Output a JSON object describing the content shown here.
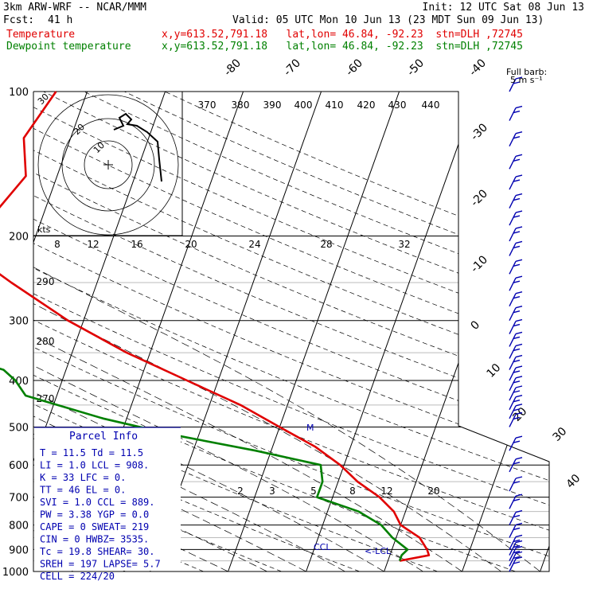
{
  "header": {
    "model": "3km ARW-WRF -- NCAR/MMM",
    "init": "Init: 12 UTC Sat 08 Jun 13",
    "fcst_label": "Fcst:",
    "fcst_hours": "41 h",
    "valid": "Valid: 05 UTC Mon 10 Jun 13 (23 MDT Sun 09 Jun 13)",
    "temp_label": "Temperature",
    "dew_label": "Dewpoint temperature",
    "location_line": "x,y=613.52,791.18   lat,lon= 46.84, -92.23  stn=DLH ,72745"
  },
  "colors": {
    "temperature": "#e00000",
    "dewpoint": "#008000",
    "info": "#0000b0",
    "barbs": "#0000b0",
    "axes": "#000000"
  },
  "chart_data": {
    "type": "line",
    "skewt": true,
    "ylabel": "",
    "pressure_levels": [
      100,
      200,
      300,
      400,
      500,
      600,
      700,
      800,
      900,
      1000
    ],
    "y_scale": "log",
    "isotherm_labels": [
      -80,
      -70,
      -60,
      -50,
      -40,
      -30,
      -20,
      -10,
      0,
      10,
      20,
      30,
      40
    ],
    "theta_labels": [
      370,
      380,
      390,
      400,
      410,
      420,
      430,
      440
    ],
    "theta_side_labels": [
      290,
      280,
      270
    ],
    "mixing_ratio_labels": [
      "2",
      "3",
      "5",
      "8",
      "12",
      "20"
    ],
    "hodograph_kts_labels": [
      "8",
      "12",
      "16",
      "20",
      "24",
      "28",
      "32"
    ],
    "hodograph_label": "kts",
    "hodograph_ring_labels": [
      "20",
      "10",
      "30"
    ],
    "barb_legend": "Full barb:\n5 m s⁻¹",
    "level_markers": [
      "CCL",
      "LCL",
      "M"
    ],
    "series": [
      {
        "name": "Temperature",
        "points": [
          [
            100,
            -54
          ],
          [
            125,
            -56
          ],
          [
            150,
            -54
          ],
          [
            175,
            -56
          ],
          [
            200,
            -57
          ],
          [
            215,
            -58
          ],
          [
            250,
            -51
          ],
          [
            300,
            -42
          ],
          [
            350,
            -33
          ],
          [
            400,
            -24
          ],
          [
            450,
            -16
          ],
          [
            500,
            -10
          ],
          [
            550,
            -4.5
          ],
          [
            600,
            -0.5
          ],
          [
            650,
            2.5
          ],
          [
            700,
            6.0
          ],
          [
            750,
            8.5
          ],
          [
            800,
            10.0
          ],
          [
            850,
            13.0
          ],
          [
            900,
            14.5
          ],
          [
            925,
            15.0
          ],
          [
            950,
            11.5
          ]
        ]
      },
      {
        "name": "Dewpoint temperature",
        "points": [
          [
            100,
            -76
          ],
          [
            125,
            -74
          ],
          [
            150,
            -72
          ],
          [
            175,
            -68
          ],
          [
            200,
            -64
          ],
          [
            225,
            -63
          ],
          [
            250,
            -61
          ],
          [
            275,
            -63
          ],
          [
            300,
            -66
          ],
          [
            320,
            -65
          ],
          [
            350,
            -56
          ],
          [
            380,
            -48
          ],
          [
            400,
            -46
          ],
          [
            430,
            -44
          ],
          [
            480,
            -33
          ],
          [
            520,
            -23
          ],
          [
            560,
            -12
          ],
          [
            600,
            -3
          ],
          [
            650,
            -2
          ],
          [
            700,
            -2
          ],
          [
            750,
            4
          ],
          [
            800,
            7.5
          ],
          [
            850,
            9.5
          ],
          [
            900,
            12
          ],
          [
            925,
            11.5
          ],
          [
            950,
            11.5
          ]
        ]
      }
    ]
  },
  "parcel_info": {
    "title": "Parcel Info",
    "rows": [
      "T  =   11.5  Td =  11.5",
      "LI =    1.0  LCL =  908.",
      "K  =     33  LFC =    0.",
      "TT =     46  EL  =    0.",
      "SVI =   1.0  CCL =  889.",
      "PW =   3.38  YGP =   0.0",
      "CAPE =    0  SWEAT=  219",
      "CIN =     0  HWBZ= 3535.",
      "Tc =   19.8  SHEAR=  30.",
      "SREH =  197  LAPSE=  5.7",
      "CELL = 224/20"
    ]
  },
  "wind_barbs": {
    "pressures": [
      100,
      115,
      130,
      145,
      160,
      175,
      190,
      205,
      220,
      240,
      260,
      280,
      300,
      320,
      340,
      360,
      380,
      400,
      420,
      440,
      460,
      480,
      500,
      560,
      620,
      680,
      740,
      800,
      850,
      900,
      925,
      950,
      975,
      1000
    ]
  }
}
